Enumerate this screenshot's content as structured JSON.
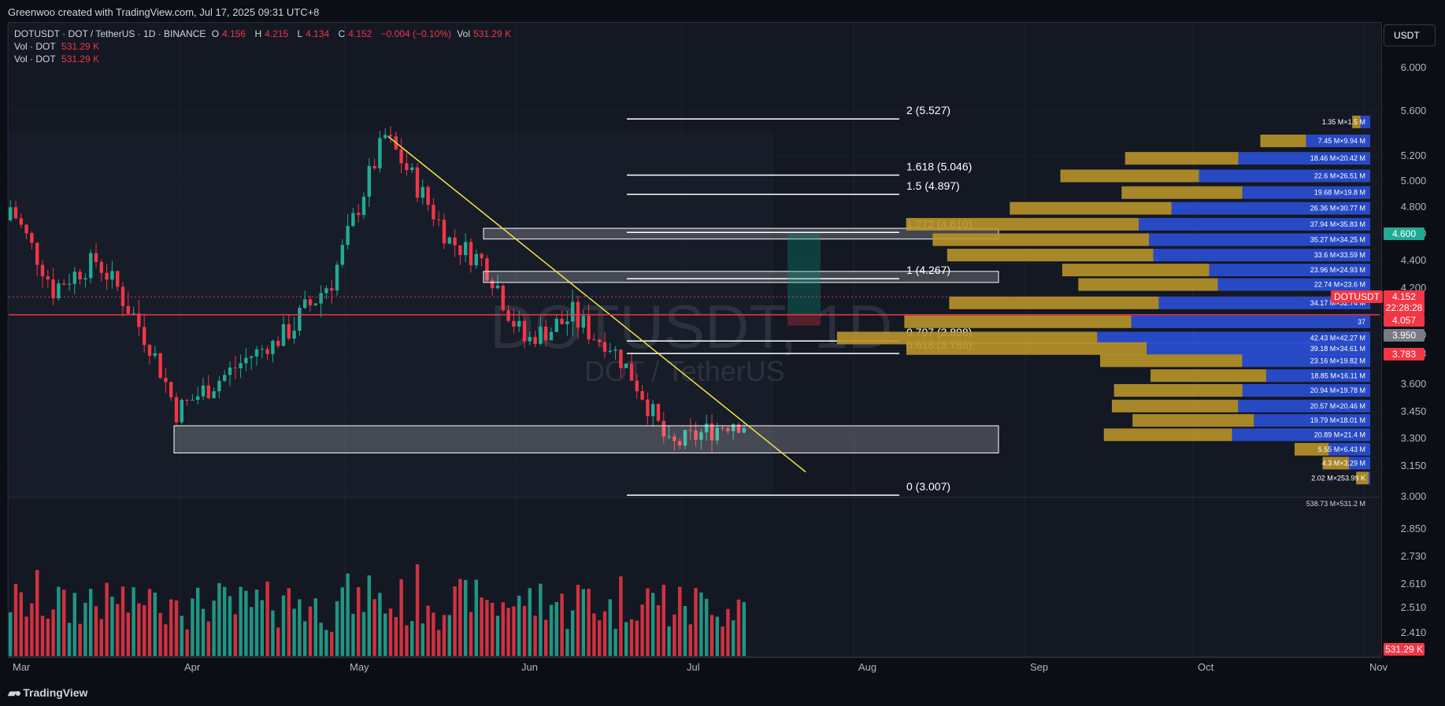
{
  "header": {
    "credit": "Greenwoo created with TradingView.com, Jul 17, 2025 09:31 UTC+8"
  },
  "legend": {
    "symbol_line": "DOTUSDT · DOT / TetherUS · 1D · BINANCE",
    "open_label": "O",
    "open": "4.156",
    "high_label": "H",
    "high": "4.215",
    "low_label": "L",
    "low": "4.134",
    "close_label": "C",
    "close": "4.152",
    "change": "−0.004 (−0.10%)",
    "vol_label": "Vol",
    "vol": "531.29 K",
    "vol_rows": [
      {
        "label": "Vol · DOT",
        "value": "531.29 K"
      },
      {
        "label": "Vol · DOT",
        "value": "531.29 K"
      }
    ]
  },
  "currency_button": "USDT",
  "watermark": {
    "symbol": "DOTUSDT, 1D",
    "description": "DOT / TetherUS"
  },
  "footer": {
    "brand": "TradingView",
    "logo_icon": "tradingview-logo-icon"
  },
  "colors": {
    "up": "#22ab94",
    "down": "#f23645",
    "accent_line": "#f23645",
    "trend": "#f5e642",
    "fib": "#ffffff",
    "vp_buy": "#2a4fd6",
    "vp_sell": "#b8942a"
  },
  "chart_data": {
    "type": "candlestick",
    "symbol": "DOTUSDT",
    "interval": "1D",
    "price_axis": {
      "scale": "log",
      "ticks": [
        "6.000",
        "5.600",
        "5.200",
        "5.000",
        "4.800",
        "4.600",
        "4.400",
        "4.200",
        "3.950",
        "3.783",
        "3.600",
        "3.450",
        "3.300",
        "3.150",
        "3.000",
        "2.850",
        "2.730",
        "2.610",
        "2.510",
        "2.410"
      ]
    },
    "time_axis": {
      "labels": [
        "Mar",
        "Apr",
        "May",
        "Jun",
        "Jul",
        "Aug",
        "Sep",
        "Oct",
        "Nov"
      ]
    },
    "price_labels": [
      {
        "value": "4.600",
        "color": "#22ab94"
      },
      {
        "value": "DOTUSDT",
        "color": "#f23645"
      },
      {
        "value": "4.152",
        "color": "#f23645"
      },
      {
        "value": "22:28:28",
        "color": "#f23645"
      },
      {
        "value": "4.057",
        "color": "#f23645"
      },
      {
        "value": "3.950",
        "color": "#787b86"
      },
      {
        "value": "3.783",
        "color": "#f23645"
      },
      {
        "value": "531.29 K",
        "color": "#f23645"
      }
    ],
    "fib_levels": [
      {
        "ratio": 2,
        "price": 5.527,
        "label": "2 (5.527)"
      },
      {
        "ratio": 1.618,
        "price": 5.046,
        "label": "1.618 (5.046)"
      },
      {
        "ratio": 1.5,
        "price": 4.897,
        "label": "1.5 (4.897)"
      },
      {
        "ratio": 1.272,
        "price": 4.61,
        "label": "1.272 (4.610)"
      },
      {
        "ratio": 1,
        "price": 4.267,
        "label": "1 (4.267)"
      },
      {
        "ratio": 0.707,
        "price": 3.898,
        "label": "0.707 (3.898)"
      },
      {
        "ratio": 0.618,
        "price": 3.786,
        "label": "0.618 (3.786)"
      },
      {
        "ratio": 0,
        "price": 3.007,
        "label": "0 (3.007)"
      }
    ],
    "horizontal_line": 4.057,
    "zones": [
      {
        "top": 4.64,
        "bottom": 4.56
      },
      {
        "top": 4.32,
        "bottom": 4.24
      },
      {
        "top": 3.37,
        "bottom": 3.22
      }
    ],
    "trendline": {
      "from": {
        "date": "2025-05-11",
        "price": 5.37
      },
      "to": {
        "date": "2025-07-28",
        "price": 3.12
      }
    },
    "volume_profile": [
      {
        "price": 5.5,
        "label": "1.35 M×1.5 M",
        "buy": 1.5,
        "sell": 1.35
      },
      {
        "price": 5.33,
        "label": "7.45 M×9.94 M",
        "buy": 9.94,
        "sell": 7.45
      },
      {
        "price": 5.18,
        "label": "18.46 M×20.42 M",
        "buy": 20.42,
        "sell": 18.46
      },
      {
        "price": 5.04,
        "label": "22.6 M×26.51 M",
        "buy": 26.51,
        "sell": 22.6
      },
      {
        "price": 4.91,
        "label": "19.68 M×19.8 M",
        "buy": 19.8,
        "sell": 19.68
      },
      {
        "price": 4.79,
        "label": "26.36 M×30.77 M",
        "buy": 30.77,
        "sell": 26.36
      },
      {
        "price": 4.67,
        "label": "37.94 M×35.83 M",
        "buy": 35.83,
        "sell": 37.94
      },
      {
        "price": 4.555,
        "label": "35.27 M×34.25 M",
        "buy": 34.25,
        "sell": 35.27
      },
      {
        "price": 4.44,
        "label": "33.6 M×33.59 M",
        "buy": 33.59,
        "sell": 33.6
      },
      {
        "price": 4.33,
        "label": "23.96 M×24.93 M",
        "buy": 24.93,
        "sell": 23.96
      },
      {
        "price": 4.225,
        "label": "22.74 M×23.6 M",
        "buy": 23.6,
        "sell": 22.74
      },
      {
        "price": 4.12,
        "label": "34.17 M×32.74 M",
        "buy": 32.74,
        "sell": 34.17
      },
      {
        "price": 4.02,
        "label": "37",
        "buy": 37,
        "sell": 37
      },
      {
        "price": 3.925,
        "label": "42.43 M×42.27 M",
        "buy": 42.27,
        "sell": 42.43
      },
      {
        "price": 3.83,
        "label": "39.18 M×34.61 M",
        "buy": 34.61,
        "sell": 39.18
      },
      {
        "price": 3.74,
        "label": "23.16 M×19.82 M",
        "buy": 19.82,
        "sell": 23.16
      },
      {
        "price": 3.65,
        "label": "18.85 M×16.11 M",
        "buy": 16.11,
        "sell": 18.85
      },
      {
        "price": 3.565,
        "label": "20.94 M×19.78 M",
        "buy": 19.78,
        "sell": 20.94
      },
      {
        "price": 3.48,
        "label": "20.57 M×20.46 M",
        "buy": 20.46,
        "sell": 20.57
      },
      {
        "price": 3.4,
        "label": "19.79 M×18.01 M",
        "buy": 18.01,
        "sell": 19.79
      },
      {
        "price": 3.32,
        "label": "20.89 M×21.4 M",
        "buy": 21.4,
        "sell": 20.89
      },
      {
        "price": 3.24,
        "label": "5.55 M×6.43 M",
        "buy": 6.43,
        "sell": 5.55
      },
      {
        "price": 3.165,
        "label": "4.3 M×3.29 M",
        "buy": 3.29,
        "sell": 4.3
      },
      {
        "price": 3.09,
        "label": "2.02 M×253.99 K",
        "buy": 0.254,
        "sell": 2.02
      }
    ],
    "volume_profile_total": "538.73 M×531.2 M",
    "position_tool": {
      "entry": 4.057,
      "target": 4.6,
      "stop": 4.0
    },
    "last_price": 4.152
  }
}
